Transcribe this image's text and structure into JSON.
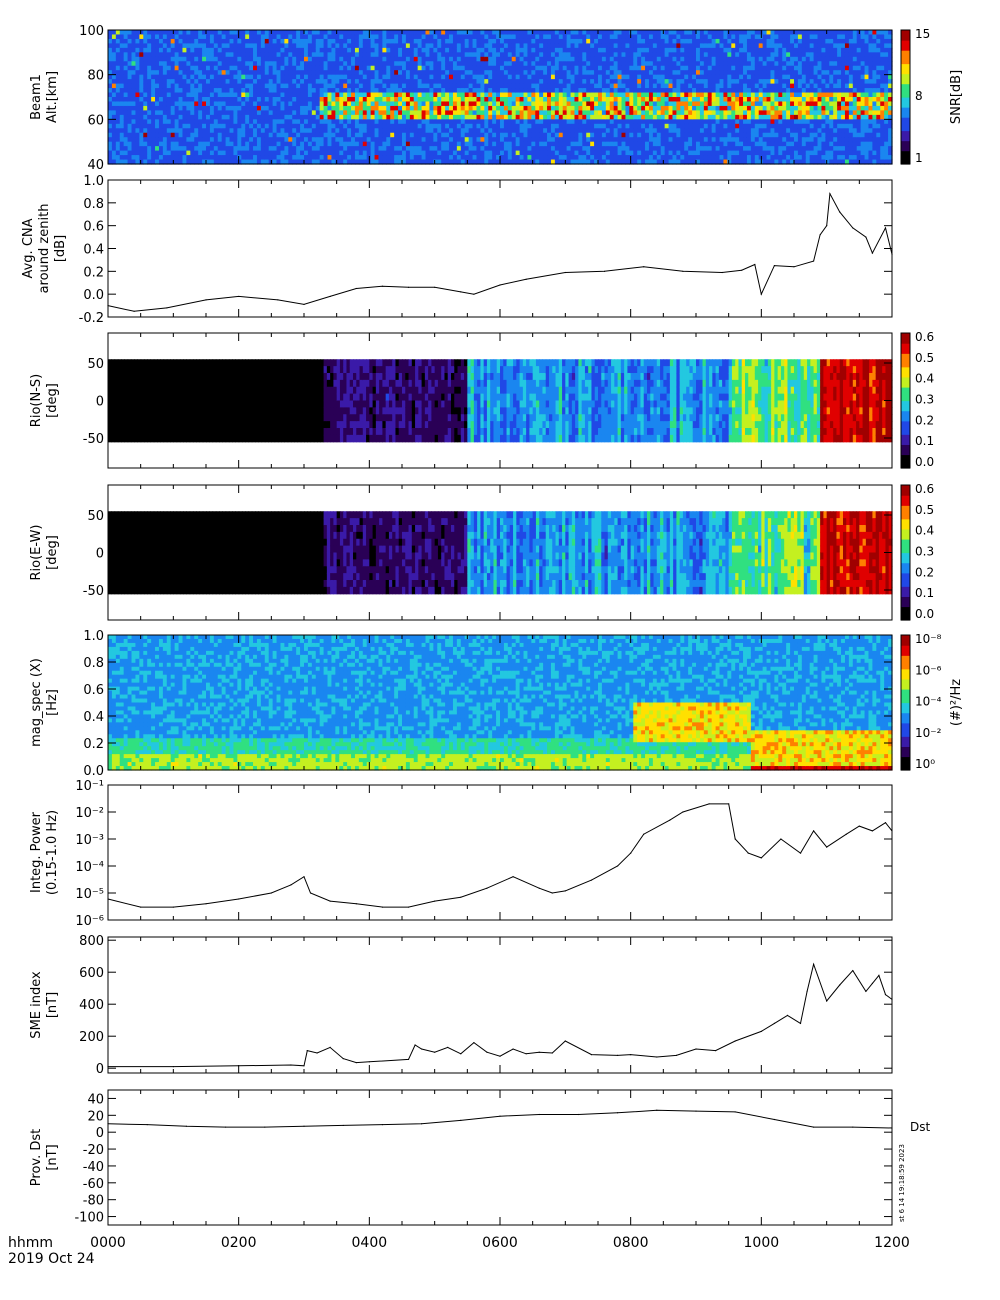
{
  "footer": {
    "time_label": "hhmm",
    "date_label": "2019 Oct 24",
    "ticks": [
      "0000",
      "0200",
      "0400",
      "0600",
      "0800",
      "1000",
      "1200"
    ]
  },
  "stamp": "st  6 14 19:18:59 2023",
  "side_label": "Dst",
  "colormap": [
    "#000000",
    "#2a0056",
    "#3a1aa8",
    "#2048e6",
    "#1a86f0",
    "#23c8e0",
    "#30e080",
    "#c4f020",
    "#ffe000",
    "#ff8000",
    "#e00000",
    "#a00000"
  ],
  "chart_data": [
    {
      "type": "heatmap",
      "name": "beam1-snr",
      "ylabel": [
        "Beam1",
        "Alt.[km]"
      ],
      "ylim": [
        40,
        100
      ],
      "yticks": [
        40,
        60,
        80,
        100
      ],
      "colorbar": {
        "label": "SNR[dB]",
        "ticks": [
          "1",
          "8",
          "15"
        ],
        "range": [
          1,
          15
        ]
      }
    },
    {
      "type": "line",
      "name": "avg-cna",
      "ylabel": [
        "Avg. CNA",
        "around zenith",
        "[dB]"
      ],
      "ylim": [
        -0.2,
        1.0
      ],
      "yticks": [
        -0.2,
        0.0,
        0.2,
        0.4,
        0.6,
        0.8,
        1.0
      ],
      "yticklabels": [
        "-0.2",
        "0.0",
        "0.2",
        "0.4",
        "0.6",
        "0.8",
        "1.0"
      ],
      "x": [
        0,
        40,
        90,
        150,
        200,
        260,
        300,
        340,
        380,
        420,
        460,
        500,
        540,
        560,
        600,
        640,
        700,
        760,
        820,
        880,
        940,
        970,
        990,
        1000,
        1020,
        1050,
        1080,
        1090,
        1100,
        1105,
        1120,
        1140,
        1160,
        1170,
        1190,
        1200
      ],
      "y": [
        -0.1,
        -0.15,
        -0.12,
        -0.05,
        -0.02,
        -0.05,
        -0.09,
        -0.02,
        0.05,
        0.07,
        0.06,
        0.06,
        0.02,
        0.0,
        0.08,
        0.13,
        0.19,
        0.2,
        0.24,
        0.2,
        0.19,
        0.21,
        0.26,
        0.0,
        0.25,
        0.24,
        0.29,
        0.52,
        0.6,
        0.88,
        0.72,
        0.58,
        0.5,
        0.36,
        0.58,
        0.35
      ]
    },
    {
      "type": "heatmap",
      "name": "rio-ns",
      "ylabel": [
        "Rio(N-S)",
        "[deg]"
      ],
      "ylim": [
        -90,
        90
      ],
      "yticks": [
        -50,
        0,
        50
      ],
      "colorbar": {
        "label": "",
        "ticks": [
          "0.0",
          "0.1",
          "0.2",
          "0.3",
          "0.4",
          "0.5",
          "0.6"
        ],
        "range": [
          0,
          0.68
        ]
      }
    },
    {
      "type": "heatmap",
      "name": "rio-ew",
      "ylabel": [
        "Rio(E-W)",
        "[deg]"
      ],
      "ylim": [
        -90,
        90
      ],
      "yticks": [
        -50,
        0,
        50
      ],
      "colorbar": {
        "label": "",
        "ticks": [
          "0.0",
          "0.1",
          "0.2",
          "0.3",
          "0.4",
          "0.5",
          "0.6"
        ],
        "range": [
          0,
          0.68
        ]
      }
    },
    {
      "type": "heatmap",
      "name": "mag-spec",
      "ylabel": [
        "mag_spec (X)",
        "[Hz]"
      ],
      "ylim": [
        0,
        1.0
      ],
      "yticks": [
        0.0,
        0.2,
        0.4,
        0.6,
        0.8,
        1.0
      ],
      "yticklabels": [
        "0.0",
        "0.2",
        "0.4",
        "0.6",
        "0.8",
        "1.0"
      ],
      "colorbar": {
        "label": "(#)²/Hz",
        "ticks": [
          "10⁰",
          "10⁻²",
          "10⁻⁴",
          "10⁻⁶",
          "10⁻⁸"
        ],
        "range": [
          1e-09,
          10
        ]
      }
    },
    {
      "type": "line",
      "name": "integ-power",
      "scale": "log",
      "ylabel": [
        "Integ. Power",
        "(0.15-1.0 Hz)"
      ],
      "ylim": [
        1e-06,
        0.1
      ],
      "yticks": [
        1e-06,
        1e-05,
        0.0001,
        0.001,
        0.01,
        0.1
      ],
      "yticklabels": [
        "10⁻⁶",
        "10⁻⁵",
        "10⁻⁴",
        "10⁻³",
        "10⁻²",
        "10⁻¹"
      ],
      "x": [
        0,
        50,
        100,
        150,
        200,
        250,
        280,
        300,
        310,
        340,
        380,
        420,
        460,
        500,
        540,
        580,
        620,
        660,
        680,
        700,
        740,
        780,
        800,
        820,
        860,
        880,
        920,
        950,
        960,
        980,
        1000,
        1030,
        1060,
        1080,
        1100,
        1130,
        1150,
        1170,
        1190,
        1200
      ],
      "y": [
        6e-06,
        3e-06,
        3e-06,
        4e-06,
        6e-06,
        1e-05,
        2e-05,
        4e-05,
        1e-05,
        5e-06,
        4e-06,
        3e-06,
        3e-06,
        5e-06,
        7e-06,
        1.5e-05,
        4e-05,
        1.5e-05,
        1e-05,
        1.2e-05,
        3e-05,
        0.0001,
        0.0003,
        0.0015,
        0.005,
        0.01,
        0.02,
        0.02,
        0.001,
        0.0003,
        0.0002,
        0.001,
        0.0003,
        0.002,
        0.0005,
        0.0015,
        0.003,
        0.002,
        0.004,
        0.002
      ]
    },
    {
      "type": "line",
      "name": "sme-index",
      "ylabel": [
        "SME index",
        "[nT]"
      ],
      "ylim": [
        -30,
        820
      ],
      "yticks": [
        0,
        200,
        400,
        600,
        800
      ],
      "yticklabels": [
        "0",
        "200",
        "400",
        "600",
        "800"
      ],
      "x": [
        0,
        100,
        200,
        280,
        300,
        305,
        320,
        340,
        360,
        380,
        400,
        460,
        470,
        480,
        500,
        520,
        540,
        560,
        580,
        600,
        620,
        640,
        660,
        680,
        700,
        740,
        780,
        800,
        840,
        870,
        900,
        930,
        960,
        1000,
        1020,
        1040,
        1060,
        1070,
        1080,
        1100,
        1120,
        1140,
        1160,
        1170,
        1180,
        1190,
        1200
      ],
      "y": [
        10,
        10,
        15,
        20,
        15,
        110,
        95,
        130,
        60,
        35,
        40,
        55,
        145,
        120,
        100,
        130,
        90,
        160,
        100,
        75,
        120,
        90,
        100,
        95,
        170,
        85,
        80,
        85,
        70,
        80,
        120,
        110,
        170,
        230,
        280,
        330,
        280,
        480,
        650,
        420,
        520,
        610,
        480,
        530,
        580,
        460,
        430
      ]
    },
    {
      "type": "line",
      "name": "prov-dst",
      "ylabel": [
        "Prov. Dst",
        "[nT]"
      ],
      "ylim": [
        -110,
        50
      ],
      "yticks": [
        -100,
        -80,
        -60,
        -40,
        -20,
        0,
        20,
        40
      ],
      "yticklabels": [
        "-100",
        "-80",
        "-60",
        "-40",
        "-20",
        "0",
        "20",
        "40"
      ],
      "x": [
        0,
        60,
        120,
        180,
        240,
        300,
        360,
        420,
        480,
        540,
        600,
        660,
        720,
        780,
        840,
        900,
        960,
        1020,
        1080,
        1140,
        1200
      ],
      "y": [
        10,
        9,
        7,
        6,
        6,
        7,
        8,
        9,
        10,
        14,
        19,
        21,
        21,
        23,
        26,
        25,
        24,
        15,
        6,
        6,
        5
      ]
    }
  ]
}
